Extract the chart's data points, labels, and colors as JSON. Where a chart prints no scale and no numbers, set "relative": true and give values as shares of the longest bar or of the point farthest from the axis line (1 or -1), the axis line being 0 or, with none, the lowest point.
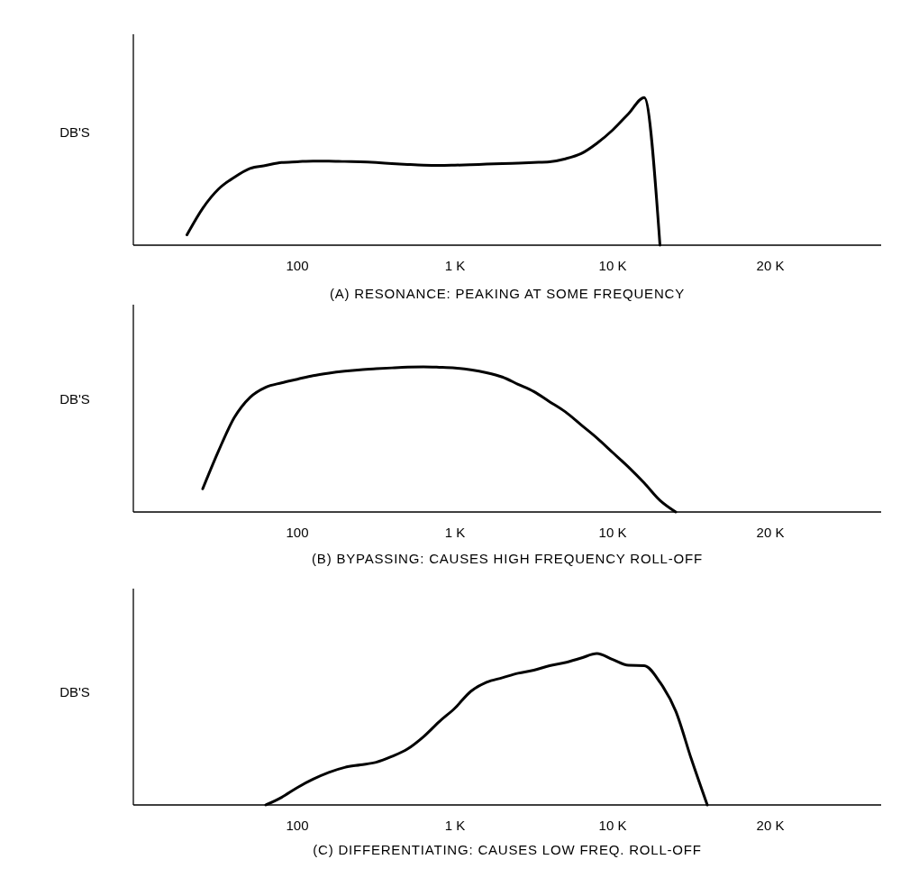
{
  "chart_data": [
    {
      "type": "line",
      "relative": true,
      "xlabel": "(A) RESONANCE:  PEAKING AT SOME FREQUENCY",
      "ylabel": "DB'S",
      "tick_labels": "x",
      "grid": false,
      "line_style": "solid",
      "marker": "none",
      "categories": [
        null,
        null,
        null,
        null,
        null,
        null,
        null,
        null,
        null,
        null,
        "100",
        null,
        null,
        null,
        null,
        null,
        null,
        null,
        null,
        null,
        "1 K",
        null,
        null,
        null,
        null,
        null,
        null,
        null,
        null,
        null,
        "10 K",
        null,
        null,
        null,
        null,
        null,
        null,
        null,
        null,
        null,
        "20 K",
        null,
        null,
        null,
        null,
        null,
        null
      ],
      "series": [
        {
          "color": "#000000",
          "values": [
            null,
            null,
            null,
            0.07,
            0.25,
            0.38,
            0.46,
            0.52,
            0.54,
            0.56,
            0.565,
            0.57,
            0.57,
            0.567,
            0.565,
            0.56,
            0.553,
            0.547,
            0.542,
            0.54,
            0.542,
            0.545,
            0.549,
            0.552,
            0.556,
            0.56,
            0.565,
            0.585,
            0.62,
            0.69,
            0.78,
            0.89,
            1,
            0,
            null,
            null,
            null,
            null,
            null,
            null,
            null,
            null,
            null,
            null,
            null,
            null,
            null
          ]
        }
      ]
    },
    {
      "type": "line",
      "relative": true,
      "xlabel": "(B) BYPASSING:  CAUSES HIGH FREQUENCY ROLL-OFF",
      "ylabel": "DB'S",
      "tick_labels": "x",
      "grid": false,
      "line_style": "solid",
      "marker": "none",
      "categories": [
        null,
        null,
        null,
        null,
        null,
        null,
        null,
        null,
        null,
        null,
        "100",
        null,
        null,
        null,
        null,
        null,
        null,
        null,
        null,
        null,
        "1 K",
        null,
        null,
        null,
        null,
        null,
        null,
        null,
        null,
        null,
        "10 K",
        null,
        null,
        null,
        null,
        null,
        null,
        null,
        null,
        null,
        "20 K",
        null,
        null,
        null,
        null,
        null,
        null
      ],
      "series": [
        {
          "color": "#000000",
          "values": [
            null,
            null,
            null,
            null,
            0.16,
            0.42,
            0.65,
            0.79,
            0.86,
            0.89,
            0.915,
            0.94,
            0.957,
            0.97,
            0.98,
            0.987,
            0.993,
            0.998,
            1,
            0.997,
            0.992,
            0.98,
            0.96,
            0.93,
            0.88,
            0.83,
            0.76,
            0.69,
            0.6,
            0.51,
            0.41,
            0.31,
            0.2,
            0.08,
            0,
            null,
            null,
            null,
            null,
            null,
            null,
            null,
            null,
            null,
            null,
            null,
            null
          ]
        }
      ]
    },
    {
      "type": "line",
      "relative": true,
      "xlabel": "(C) DIFFERENTIATING:  CAUSES LOW FREQ.  ROLL-OFF",
      "ylabel": "DB'S",
      "tick_labels": "x",
      "grid": false,
      "line_style": "solid",
      "marker": "none",
      "categories": [
        null,
        null,
        null,
        null,
        null,
        null,
        null,
        null,
        null,
        null,
        "100",
        null,
        null,
        null,
        null,
        null,
        null,
        null,
        null,
        null,
        "1 K",
        null,
        null,
        null,
        null,
        null,
        null,
        null,
        null,
        null,
        "10 K",
        null,
        null,
        null,
        null,
        null,
        null,
        null,
        null,
        null,
        "20 K",
        null,
        null,
        null,
        null,
        null,
        null
      ],
      "series": [
        {
          "color": "#000000",
          "values": [
            null,
            null,
            null,
            null,
            null,
            null,
            null,
            null,
            0,
            0.05,
            0.115,
            0.17,
            0.215,
            0.248,
            0.265,
            0.282,
            0.32,
            0.37,
            0.45,
            0.55,
            0.64,
            0.75,
            0.81,
            0.84,
            0.87,
            0.89,
            0.92,
            0.94,
            0.97,
            1,
            0.96,
            0.922,
            0.92,
            0.81,
            0.62,
            0.3,
            0,
            null,
            null,
            null,
            null,
            null,
            null,
            null,
            null,
            null,
            null
          ]
        }
      ]
    }
  ]
}
